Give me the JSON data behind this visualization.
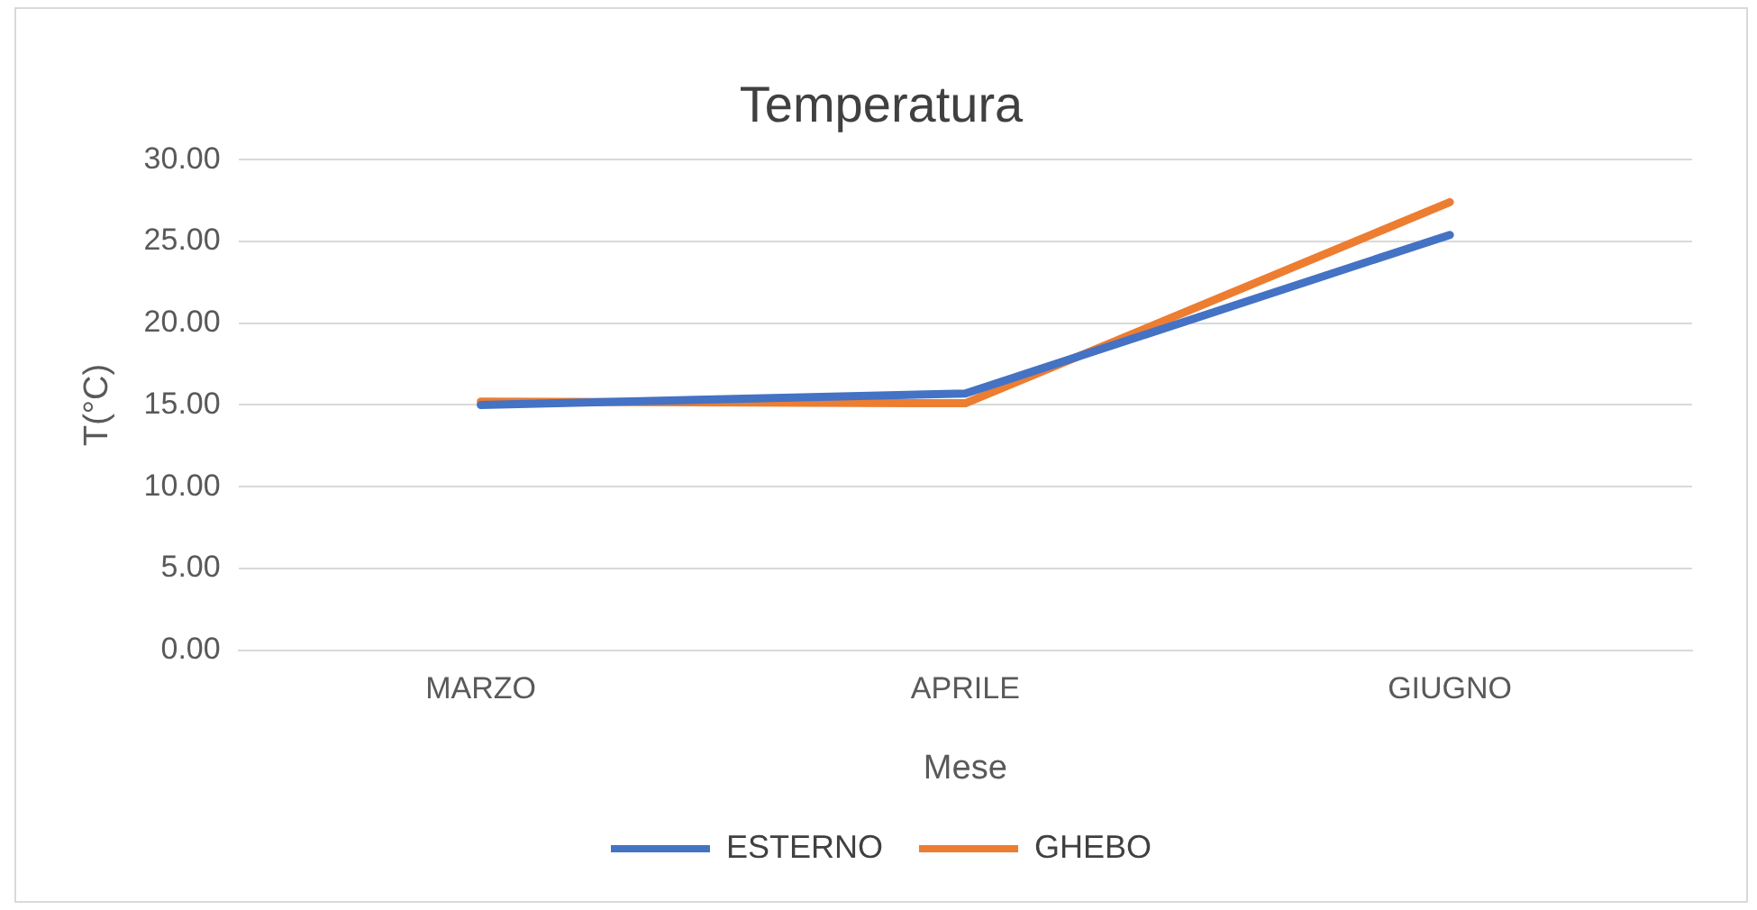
{
  "chart_data": {
    "type": "line",
    "title": "Temperatura",
    "xlabel": "Mese",
    "ylabel": "T(°C)",
    "categories": [
      "MARZO",
      "APRILE",
      "GIUGNO"
    ],
    "series": [
      {
        "name": "ESTERNO",
        "color": "#4472c4",
        "values": [
          15.0,
          15.7,
          25.4
        ]
      },
      {
        "name": "GHEBO",
        "color": "#ed7d31",
        "values": [
          15.2,
          15.1,
          27.4
        ]
      }
    ],
    "ylim": [
      0,
      30
    ],
    "yticks": [
      {
        "value": 0,
        "label": "0.00"
      },
      {
        "value": 5,
        "label": "5.00"
      },
      {
        "value": 10,
        "label": "10.00"
      },
      {
        "value": 15,
        "label": "15.00"
      },
      {
        "value": 20,
        "label": "20.00"
      },
      {
        "value": 25,
        "label": "25.00"
      },
      {
        "value": 30,
        "label": "30.00"
      }
    ],
    "grid": "y",
    "legend": "bottom",
    "marker": "none",
    "line_style": "solid"
  }
}
